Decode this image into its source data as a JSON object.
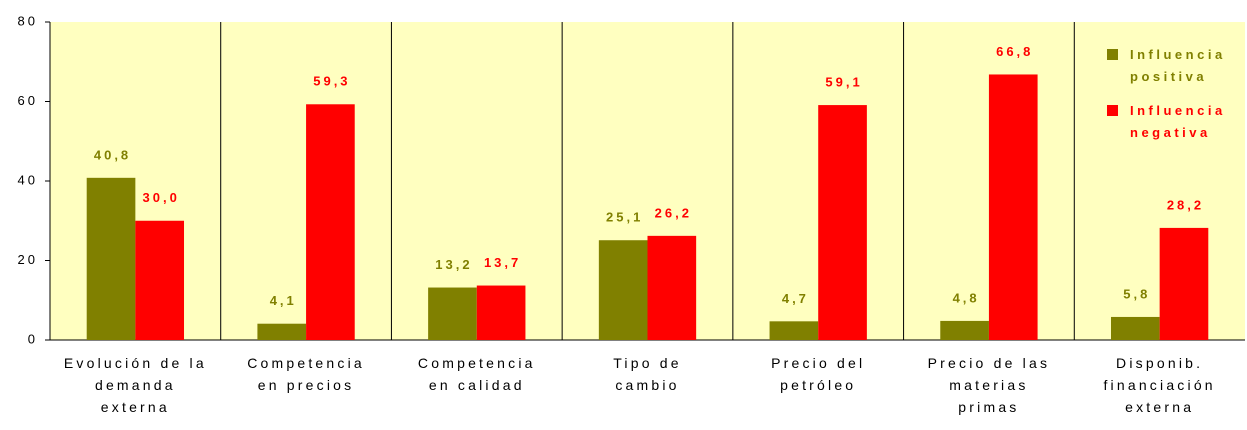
{
  "chart_data": {
    "type": "bar",
    "categories": [
      "Evolución de la\ndemanda\nexterna",
      "Competencia\nen precios",
      "Competencia\nen calidad",
      "Tipo de\ncambio",
      "Precio del\npetróleo",
      "Precio de las\nmaterias\nprimas",
      "Disponib.\nfinanciación\nexterna"
    ],
    "series": [
      {
        "name": "Influencia positiva",
        "color": "#808000",
        "values": [
          40.8,
          4.1,
          13.2,
          25.1,
          4.7,
          4.8,
          5.8
        ],
        "value_labels": [
          "40,8",
          "4,1",
          "13,2",
          "25,1",
          "4,7",
          "4,8",
          "5,8"
        ]
      },
      {
        "name": "Influencia negativa",
        "color": "#ff0000",
        "values": [
          30.0,
          59.3,
          13.7,
          26.2,
          59.1,
          66.8,
          28.2
        ],
        "value_labels": [
          "30,0",
          "59,3",
          "13,7",
          "26,2",
          "59,1",
          "66,8",
          "28,2"
        ]
      }
    ],
    "ylim": [
      0,
      80
    ],
    "yticks": [
      0,
      20,
      40,
      60,
      80
    ],
    "grid": false,
    "legend": "top-right"
  }
}
